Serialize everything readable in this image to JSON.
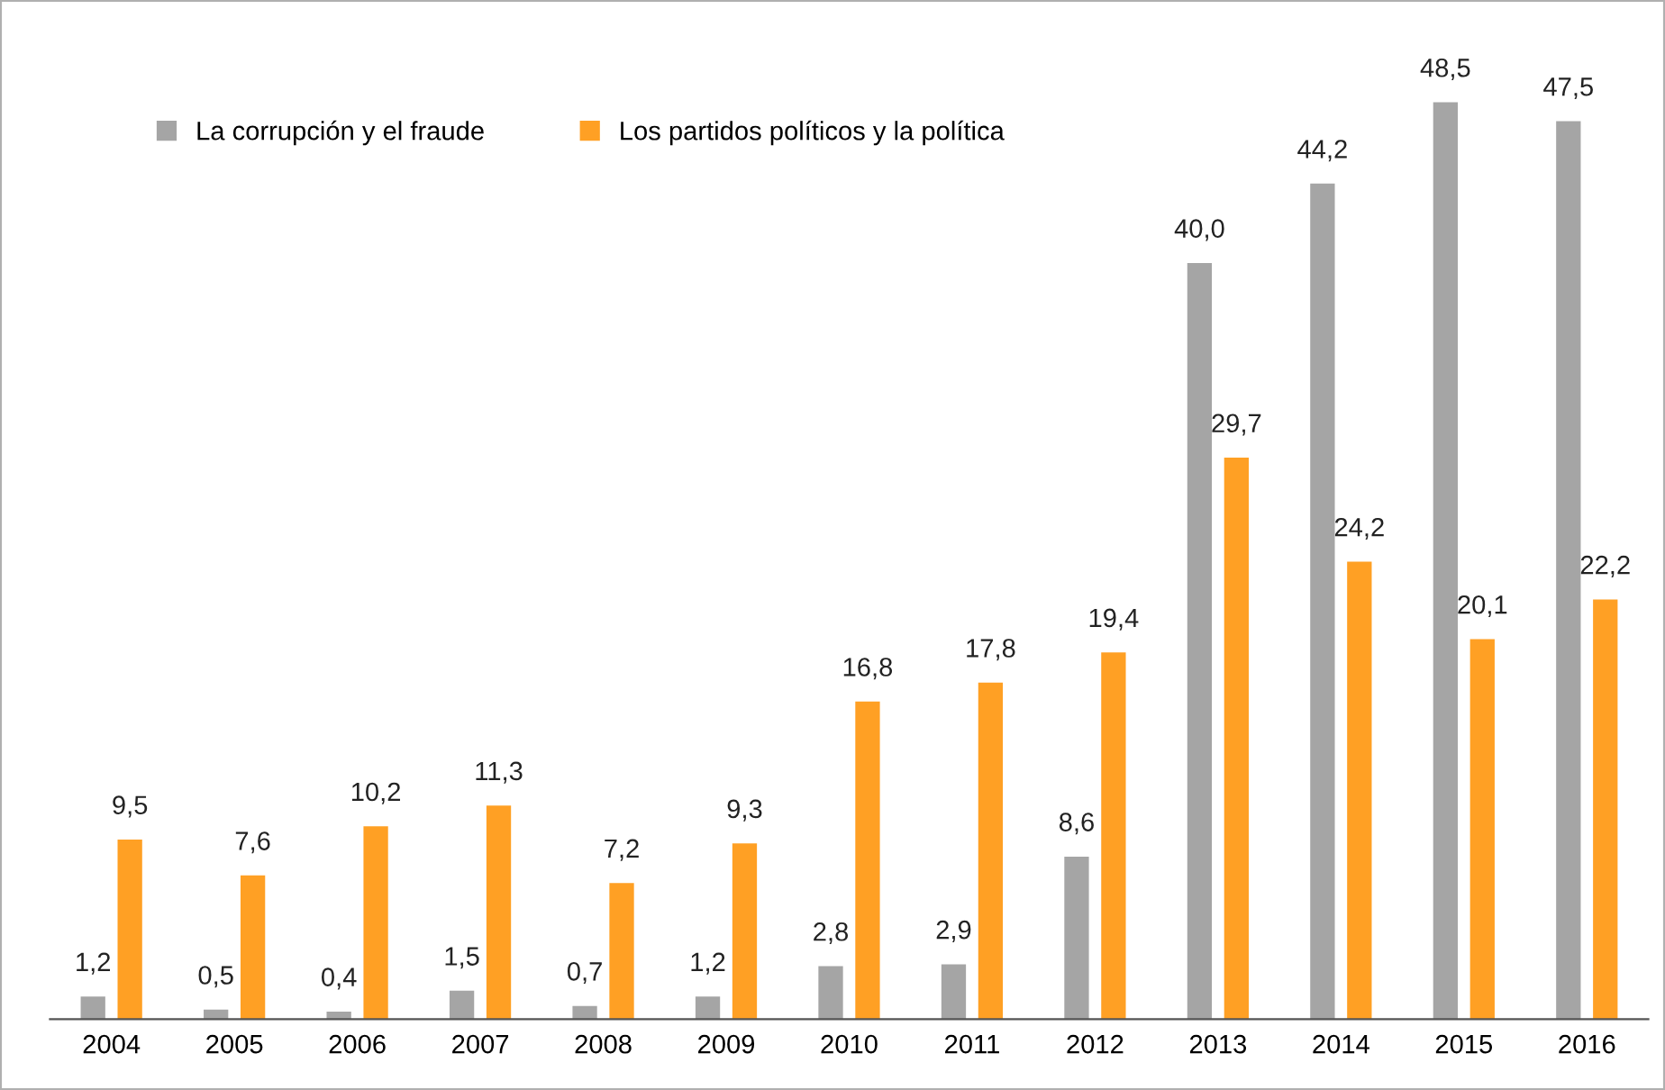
{
  "chart_data": {
    "type": "bar",
    "categories": [
      "2004",
      "2005",
      "2006",
      "2007",
      "2008",
      "2009",
      "2010",
      "2011",
      "2012",
      "2013",
      "2014",
      "2015",
      "2016"
    ],
    "series": [
      {
        "name": "La corrupción y el fraude",
        "color": "#a5a5a5",
        "values": [
          1.2,
          0.5,
          0.4,
          1.5,
          0.7,
          1.2,
          2.8,
          2.9,
          8.6,
          40.0,
          44.2,
          48.5,
          47.5
        ],
        "value_labels": [
          "1,2",
          "0,5",
          "0,4",
          "1,5",
          "0,7",
          "1,2",
          "2,8",
          "2,9",
          "8,6",
          "40,0",
          "44,2",
          "48,5",
          "47,5"
        ]
      },
      {
        "name": "Los partidos políticos y la política",
        "color": "#ffa024",
        "values": [
          9.5,
          7.6,
          10.2,
          11.3,
          7.2,
          9.3,
          16.8,
          17.8,
          19.4,
          29.7,
          24.2,
          20.1,
          22.2
        ],
        "value_labels": [
          "9,5",
          "7,6",
          "10,2",
          "11,3",
          "7,2",
          "9,3",
          "16,8",
          "17,8",
          "19,4",
          "29,7",
          "24,2",
          "20,1",
          "22,2"
        ]
      }
    ],
    "legend": "top left",
    "grid": false,
    "tick_labels": "x"
  }
}
